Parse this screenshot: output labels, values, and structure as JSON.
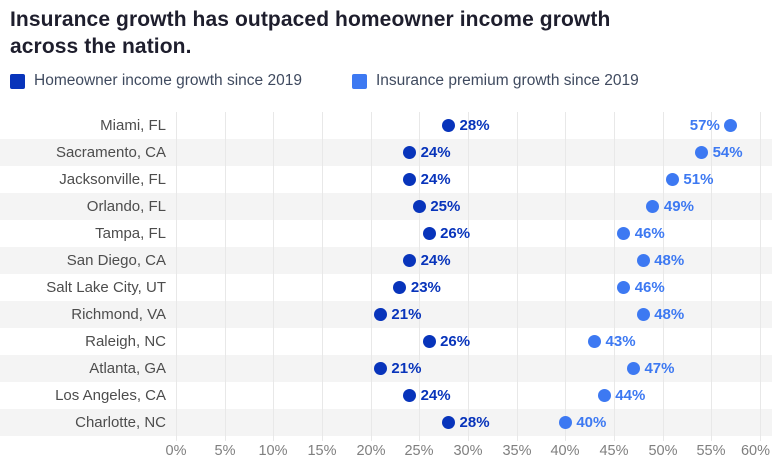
{
  "title": {
    "line1": "Insurance growth has outpaced homeowner income growth",
    "line2": "across the nation."
  },
  "legend": {
    "items": [
      {
        "key": "income",
        "label": "Homeowner income growth since 2019",
        "color": "#0834bb"
      },
      {
        "key": "premium",
        "label": "Insurance premium growth since 2019",
        "color": "#3d79f2"
      }
    ]
  },
  "colors": {
    "background": "#ffffff",
    "title_text": "#1e1e2d",
    "legend_text": "#3f4a5f",
    "category_label": "#4d4d4d",
    "axis_label": "#7f7f7f",
    "row_stripe": "#f4f4f4",
    "row_plain": "#ffffff",
    "gridline": "#e8e8e8",
    "income": "#0834bb",
    "premium": "#3d79f2"
  },
  "chart_data": {
    "type": "scatter",
    "subtype": "horizontal-dot-plot",
    "title": "Insurance growth has outpaced homeowner income growth across the nation.",
    "categories": [
      "Miami, FL",
      "Sacramento, CA",
      "Jacksonville, FL",
      "Orlando, FL",
      "Tampa, FL",
      "San Diego, CA",
      "Salt Lake City, UT",
      "Richmond, VA",
      "Raleigh, NC",
      "Atlanta, GA",
      "Los Angeles, CA",
      "Charlotte, NC"
    ],
    "series": [
      {
        "key": "income",
        "name": "Homeowner income growth since 2019",
        "color": "#0834bb",
        "values": [
          28,
          24,
          24,
          25,
          26,
          24,
          23,
          21,
          26,
          21,
          24,
          28
        ],
        "labels": [
          "28%",
          "24%",
          "24%",
          "25%",
          "26%",
          "24%",
          "23%",
          "21%",
          "26%",
          "21%",
          "24%",
          "28%"
        ],
        "label_sides": [
          "right",
          "right",
          "right",
          "right",
          "right",
          "right",
          "right",
          "right",
          "right",
          "right",
          "right",
          "right"
        ]
      },
      {
        "key": "premium",
        "name": "Insurance premium growth since 2019",
        "color": "#3d79f2",
        "values": [
          57,
          54,
          51,
          49,
          46,
          48,
          46,
          48,
          43,
          47,
          44,
          40
        ],
        "labels": [
          "57%",
          "54%",
          "51%",
          "49%",
          "46%",
          "48%",
          "46%",
          "48%",
          "43%",
          "47%",
          "44%",
          "40%"
        ],
        "label_sides": [
          "left",
          "right",
          "right",
          "right",
          "right",
          "right",
          "right",
          "right",
          "right",
          "right",
          "right",
          "right"
        ]
      }
    ],
    "xlim": [
      0,
      60
    ],
    "xticks": [
      {
        "value": 0,
        "label": "0%"
      },
      {
        "value": 5,
        "label": "5%"
      },
      {
        "value": 10,
        "label": "10%"
      },
      {
        "value": 15,
        "label": "15%"
      },
      {
        "value": 20,
        "label": "20%"
      },
      {
        "value": 25,
        "label": "25%"
      },
      {
        "value": 30,
        "label": "30%"
      },
      {
        "value": 35,
        "label": "35%"
      },
      {
        "value": 40,
        "label": "40%"
      },
      {
        "value": 45,
        "label": "45%"
      },
      {
        "value": 50,
        "label": "50%"
      },
      {
        "value": 55,
        "label": "55%"
      },
      {
        "value": 60,
        "label": "60%",
        "align": "end"
      }
    ],
    "grid": "vertical",
    "legend_position": "top",
    "row_striping": true
  }
}
